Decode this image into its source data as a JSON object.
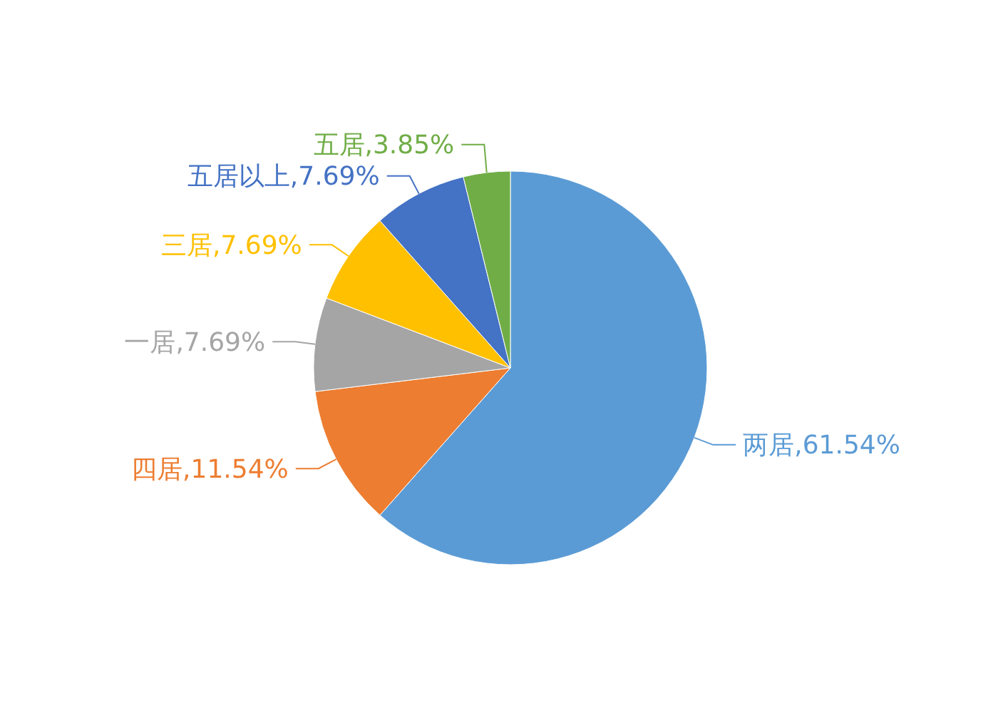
{
  "chart_data": {
    "type": "pie",
    "categories": [
      "两居",
      "四居",
      "一居",
      "三居",
      "五居以上",
      "五居"
    ],
    "values": [
      61.54,
      11.54,
      7.69,
      7.69,
      7.69,
      3.85
    ],
    "value_labels": [
      "61.54%",
      "11.54%",
      "7.69%",
      "7.69%",
      "7.69%",
      "3.85%"
    ],
    "colors": [
      "#5b9bd5",
      "#ed7d31",
      "#a5a5a5",
      "#ffc000",
      "#4472c4",
      "#70ad47"
    ]
  }
}
